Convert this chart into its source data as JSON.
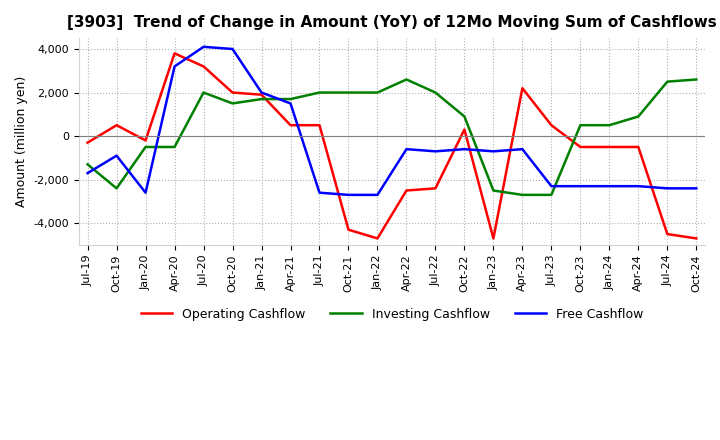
{
  "title": "[3903]  Trend of Change in Amount (YoY) of 12Mo Moving Sum of Cashflows",
  "ylabel": "Amount (million yen)",
  "ylim": [
    -5000,
    4500
  ],
  "yticks": [
    -4000,
    -2000,
    0,
    2000,
    4000
  ],
  "x_labels": [
    "Jul-19",
    "Oct-19",
    "Jan-20",
    "Apr-20",
    "Jul-20",
    "Oct-20",
    "Jan-21",
    "Apr-21",
    "Jul-21",
    "Oct-21",
    "Jan-22",
    "Apr-22",
    "Jul-22",
    "Oct-22",
    "Jan-23",
    "Apr-23",
    "Jul-23",
    "Oct-23",
    "Jan-24",
    "Apr-24",
    "Jul-24",
    "Oct-24"
  ],
  "operating": [
    -300,
    500,
    -200,
    3800,
    3200,
    2000,
    1900,
    500,
    500,
    -4300,
    -4700,
    -2500,
    -2400,
    300,
    -4700,
    2200,
    500,
    -500,
    -500,
    -500,
    -4500,
    -4700
  ],
  "investing": [
    -1300,
    -2400,
    -500,
    -500,
    2000,
    1500,
    1700,
    1700,
    2000,
    2000,
    2000,
    2600,
    2000,
    900,
    -2500,
    -2700,
    -2700,
    500,
    500,
    900,
    2500,
    2600
  ],
  "free": [
    -1700,
    -900,
    -2600,
    3200,
    4100,
    4000,
    2000,
    1500,
    -2600,
    -2700,
    -2700,
    -600,
    -700,
    -600,
    -700,
    -600,
    -2300,
    -2300,
    -2300,
    -2300,
    -2400,
    -2400
  ],
  "operating_color": "#ff0000",
  "investing_color": "#008000",
  "free_color": "#0000ff",
  "background_color": "#ffffff",
  "grid_color": "#b0b0b0",
  "title_fontsize": 11,
  "label_fontsize": 9,
  "tick_fontsize": 8
}
